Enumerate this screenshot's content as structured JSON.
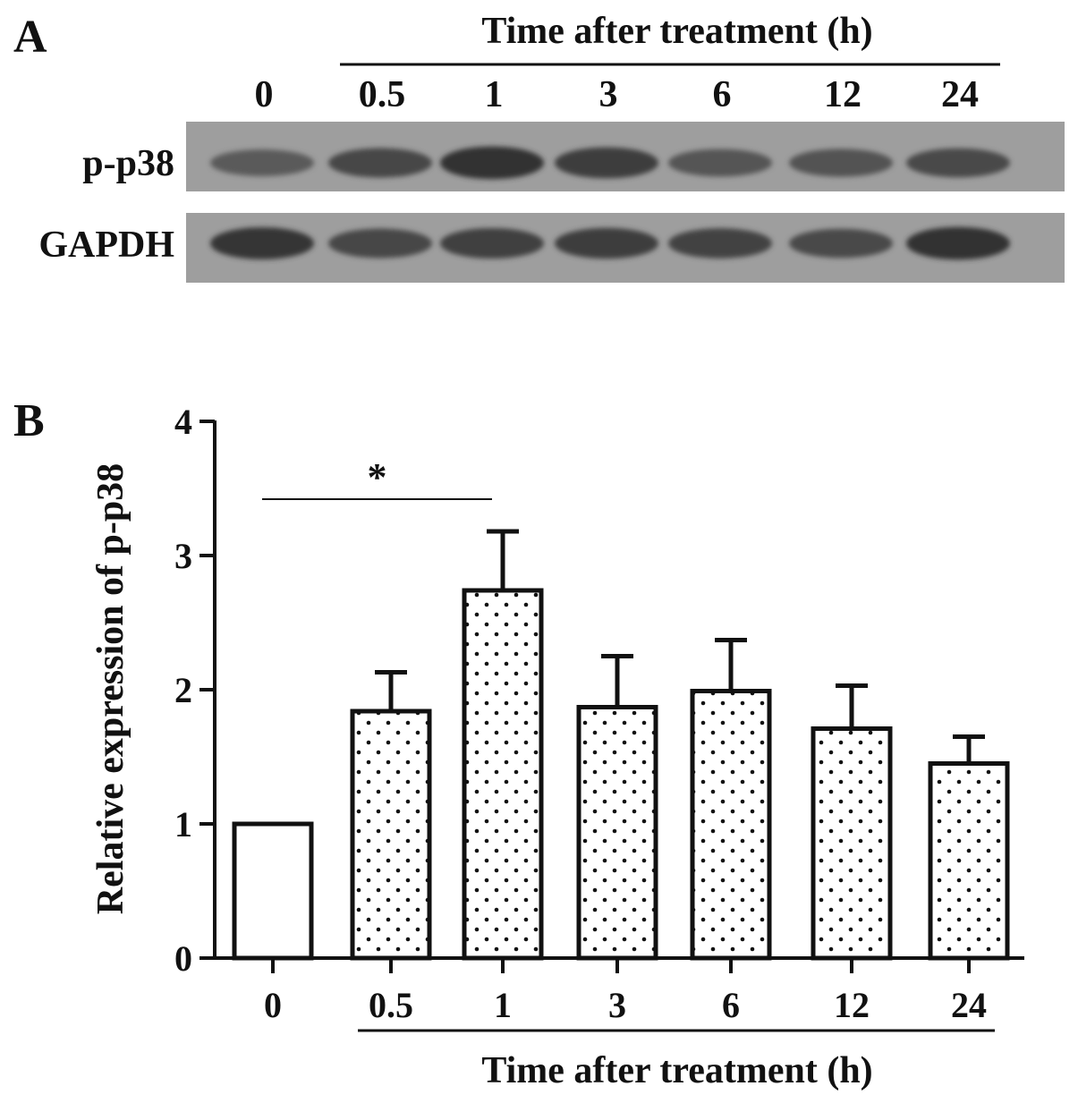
{
  "panel_a": {
    "panel_label": "A",
    "header": "Time after treatment (h)",
    "lanes": [
      "0",
      "0.5",
      "1",
      "3",
      "6",
      "12",
      "24"
    ],
    "blots": [
      {
        "label": "p-p38",
        "band_intensity": [
          0.55,
          0.72,
          0.92,
          0.82,
          0.6,
          0.62,
          0.7
        ]
      },
      {
        "label": "GAPDH",
        "band_intensity": [
          0.88,
          0.72,
          0.78,
          0.8,
          0.76,
          0.7,
          0.92
        ]
      }
    ]
  },
  "chart_data": {
    "type": "bar",
    "panel_label": "B",
    "categories": [
      "0",
      "0.5",
      "1",
      "3",
      "6",
      "12",
      "24"
    ],
    "values": [
      1.0,
      1.84,
      2.74,
      1.87,
      1.99,
      1.71,
      1.45
    ],
    "errors": [
      0.0,
      0.29,
      0.44,
      0.38,
      0.38,
      0.32,
      0.2
    ],
    "fills": [
      "open",
      "dotted",
      "dotted",
      "dotted",
      "dotted",
      "dotted",
      "dotted"
    ],
    "ylabel": "Relative expression of p-p38",
    "xlabel": "Time after treatment (h)",
    "ylim": [
      0,
      4
    ],
    "yticks": [
      "0",
      "1",
      "2",
      "3",
      "4"
    ],
    "grid": false,
    "annotations": [
      {
        "text": "*",
        "from_category": "0",
        "to_category": "1",
        "y": 3.42
      }
    ]
  }
}
